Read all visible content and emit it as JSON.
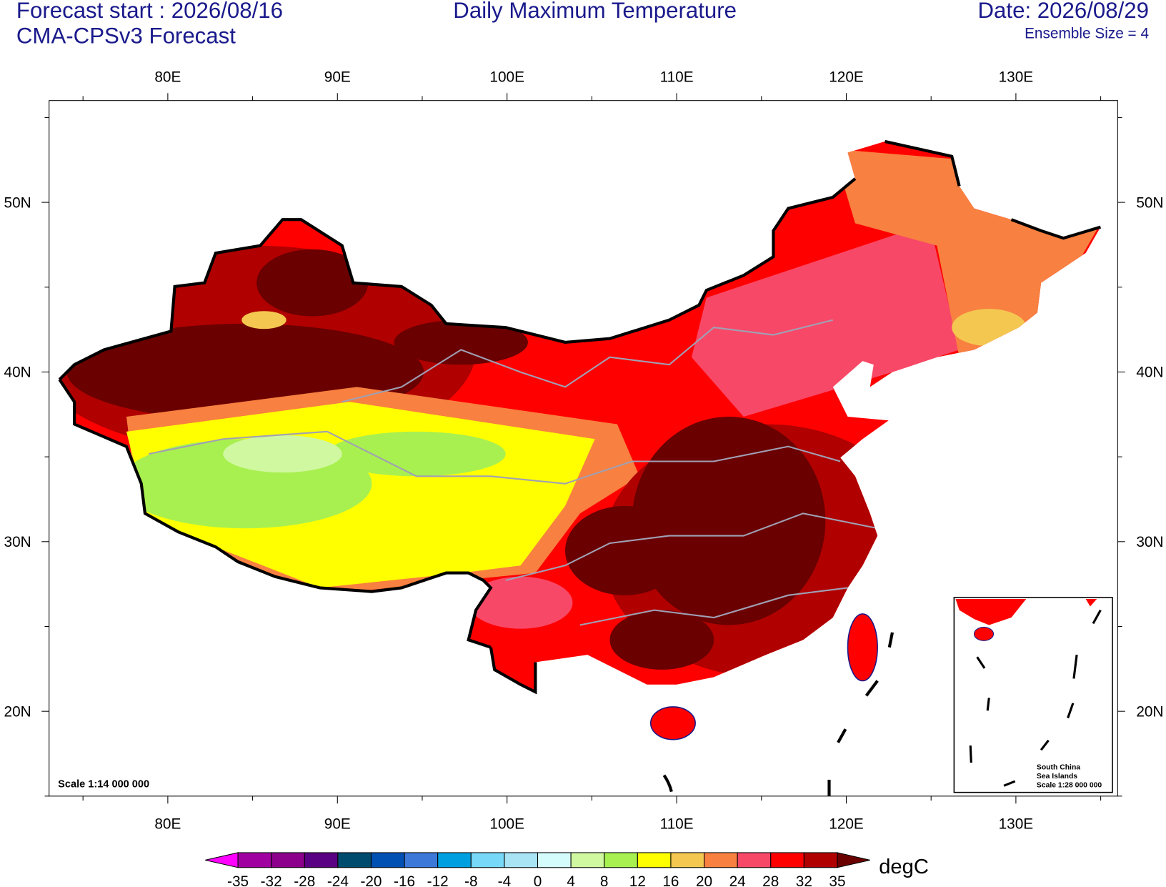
{
  "chart_data": {
    "type": "map",
    "title": "Daily Maximum Temperature",
    "subtitle_left": [
      "Forecast start : 2026/08/16",
      "CMA-CPSv3 Forecast"
    ],
    "date": "Date: 2026/08/29",
    "ensemble": "Ensemble Size = 4",
    "scale": "Scale 1:14 000 000",
    "inset_labels": [
      "South China",
      "Sea Islands",
      "Scale 1:28 000 000"
    ],
    "xlim": [
      73,
      136
    ],
    "ylim": [
      15,
      56
    ],
    "xticks": [
      {
        "value": 80,
        "label": "80E"
      },
      {
        "value": 90,
        "label": "90E"
      },
      {
        "value": 100,
        "label": "100E"
      },
      {
        "value": 110,
        "label": "110E"
      },
      {
        "value": 120,
        "label": "120E"
      },
      {
        "value": 130,
        "label": "130E"
      }
    ],
    "yticks": [
      {
        "value": 20,
        "label": "20N"
      },
      {
        "value": 30,
        "label": "30N"
      },
      {
        "value": 40,
        "label": "40N"
      },
      {
        "value": 50,
        "label": "50N"
      }
    ],
    "x_minor_ticks": [
      75,
      85,
      95,
      105,
      115,
      125,
      135
    ],
    "y_minor_ticks": [
      15,
      25,
      35,
      45,
      55
    ],
    "colorbar": {
      "units": "degC",
      "levels": [
        -35,
        -32,
        -28,
        -24,
        -20,
        -16,
        -12,
        -8,
        -4,
        0,
        4,
        8,
        12,
        16,
        20,
        24,
        28,
        32,
        35
      ],
      "colors": [
        "#ff00ff",
        "#a000a0",
        "#8c008c",
        "#5a0082",
        "#004c6e",
        "#0050b4",
        "#3c78d8",
        "#00a0e0",
        "#78d8f8",
        "#a8e4f4",
        "#d4fcfc",
        "#d0f8a0",
        "#a8f050",
        "#ffff00",
        "#f4c850",
        "#f88040",
        "#f84868",
        "#ff0000",
        "#b00000",
        "#6a0000"
      ]
    }
  }
}
